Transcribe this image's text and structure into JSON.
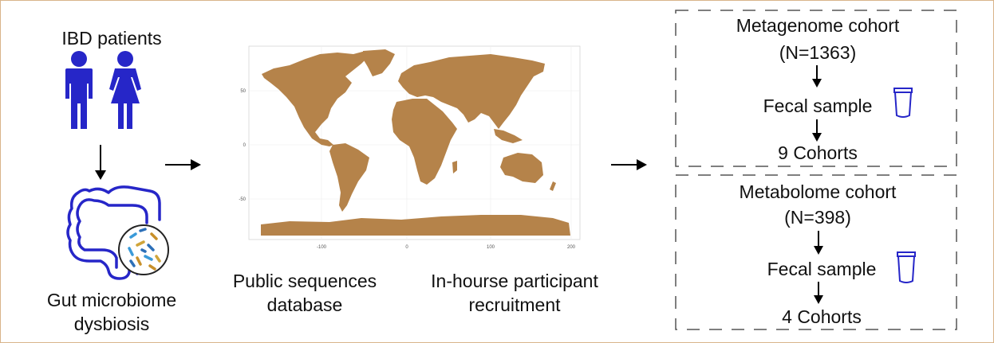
{
  "left": {
    "patients_label": "IBD patients",
    "dysbiosis_label_line1": "Gut microbiome",
    "dysbiosis_label_line2": "dysbiosis",
    "icon_color": "#2626c8"
  },
  "map": {
    "land_color": "#b5834a",
    "y_ticks": [
      "50",
      "0",
      "-50"
    ],
    "x_ticks": [
      "-100",
      "0",
      "100",
      "200"
    ],
    "caption_public_line1": "Public sequences",
    "caption_public_line2": "database",
    "caption_inhouse_line1": "In-hourse participant",
    "caption_inhouse_line2": "recruitment"
  },
  "metagenome": {
    "title": "Metagenome cohort",
    "n": "(N=1363)",
    "sample": "Fecal sample",
    "cohorts": "9 Cohorts"
  },
  "metabolome": {
    "title": "Metabolome cohort",
    "n": "(N=398)",
    "sample": "Fecal sample",
    "cohorts": "4 Cohorts"
  }
}
